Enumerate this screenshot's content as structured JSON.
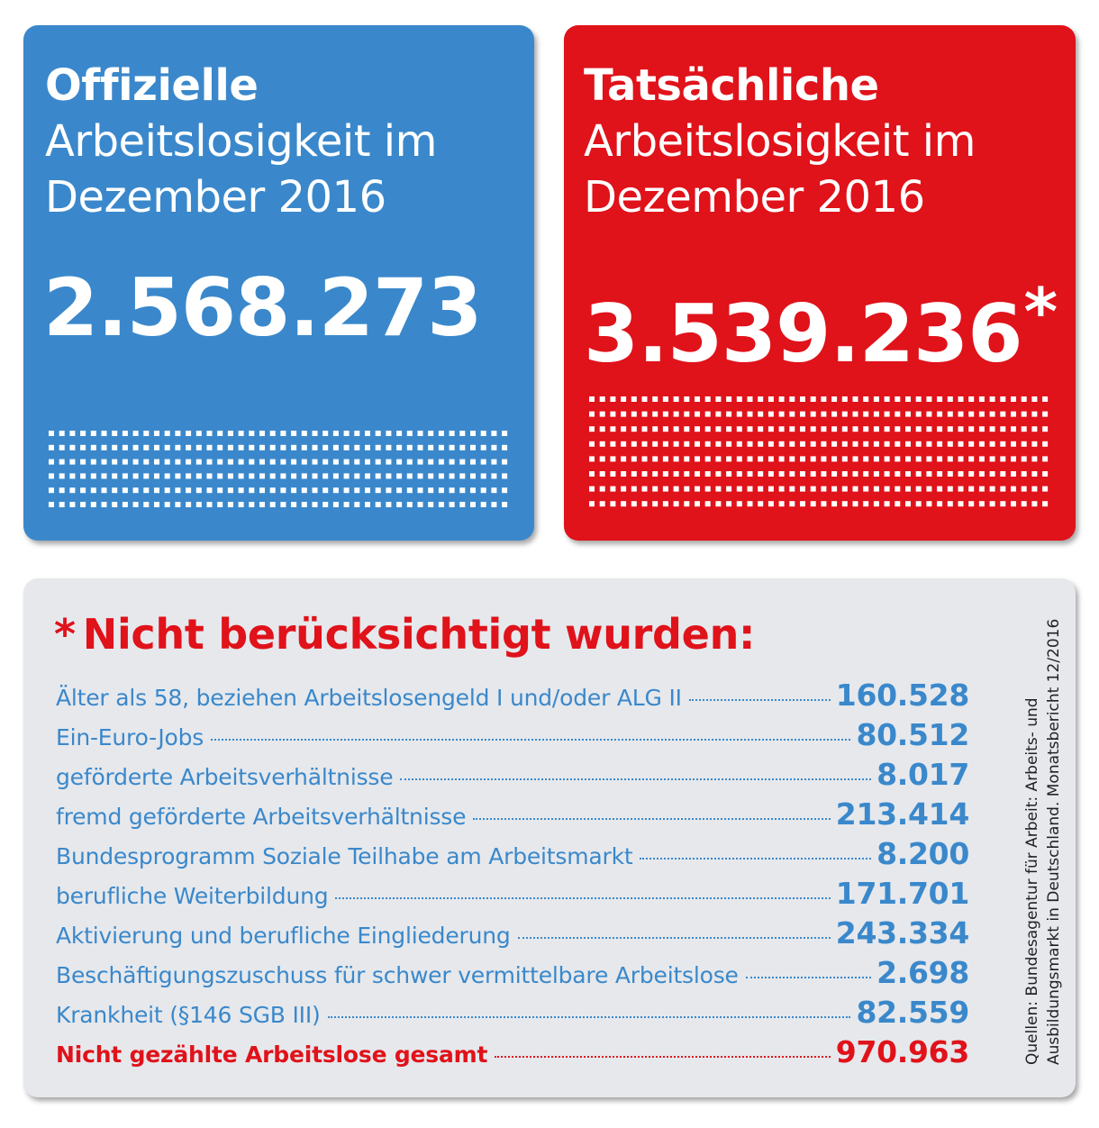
{
  "official": {
    "title_bold": "Offizielle",
    "title_line1": "Arbeitslosigkeit im",
    "title_line2": "Dezember 2016",
    "number": "2.568.273",
    "color": "#3a88cb"
  },
  "actual": {
    "title_bold": "Tatsächliche",
    "title_line1": "Arbeitslosigkeit im",
    "title_line2": "Dezember 2016",
    "number": "3.539.236",
    "asterisk": "*",
    "color": "#e0121a"
  },
  "panel": {
    "asterisk": "*",
    "heading": "Nicht berücksichtigt wurden:",
    "items": [
      {
        "label": "Älter als 58, beziehen Arbeitslosengeld I und/oder ALG II",
        "value": "160.528"
      },
      {
        "label": "Ein-Euro-Jobs",
        "value": "80.512"
      },
      {
        "label": "geförderte Arbeitsverhältnisse",
        "value": "8.017"
      },
      {
        "label": "fremd geförderte Arbeitsverhältnisse",
        "value": "213.414"
      },
      {
        "label": "Bundesprogramm Soziale Teilhabe am Arbeitsmarkt",
        "value": "8.200"
      },
      {
        "label": "berufliche Weiterbildung",
        "value": "171.701"
      },
      {
        "label": "Aktivierung und berufliche Eingliederung",
        "value": "243.334"
      },
      {
        "label": "Beschäftigungszuschuss für schwer vermittelbare Arbeitslose",
        "value": "2.698"
      },
      {
        "label": "Krankheit (§146 SGB III)",
        "value": "82.559"
      }
    ],
    "total": {
      "label": "Nicht gezählte Arbeitslose gesamt",
      "value": "970.963"
    },
    "source_line1": "Quellen: Bundesagentur für Arbeit: Arbeits- und",
    "source_line2": "Ausbildungsmarkt in Deutschland. Monatsbericht 12/2016",
    "background_color": "#e6e8ec"
  }
}
